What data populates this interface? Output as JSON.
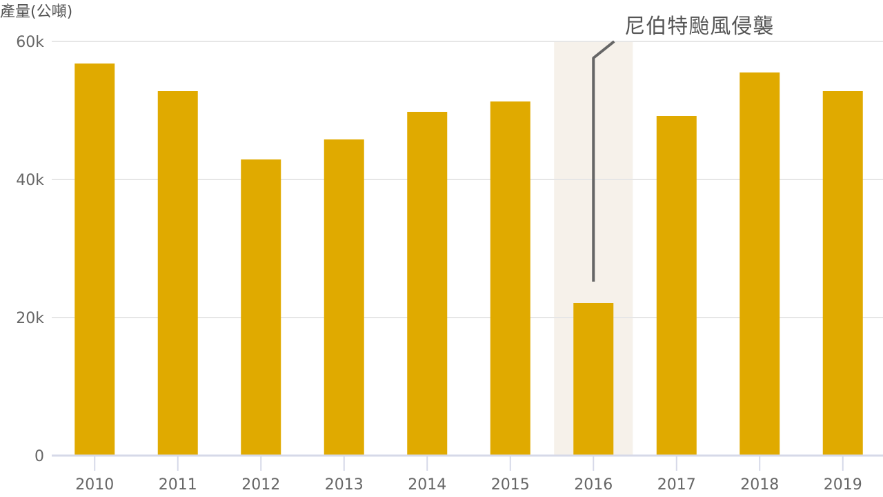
{
  "chart_data": {
    "type": "bar",
    "categories": [
      "2010",
      "2011",
      "2012",
      "2013",
      "2014",
      "2015",
      "2016",
      "2017",
      "2018",
      "2019"
    ],
    "values": [
      56800,
      52800,
      42900,
      45800,
      49800,
      51300,
      22100,
      49200,
      55500,
      52800
    ],
    "ylabel": "產量(公噸)",
    "ylim": [
      0,
      60000
    ],
    "yticks": [
      0,
      20000,
      40000,
      60000
    ],
    "ytick_labels": [
      "0",
      "20k",
      "40k",
      "60k"
    ],
    "grid": true,
    "bar_color": "#E0AA00",
    "annotation": {
      "category": "2016",
      "text": "尼伯特颱風侵襲",
      "highlight_color": "#F6F1EA",
      "line_color": "#666666"
    }
  }
}
